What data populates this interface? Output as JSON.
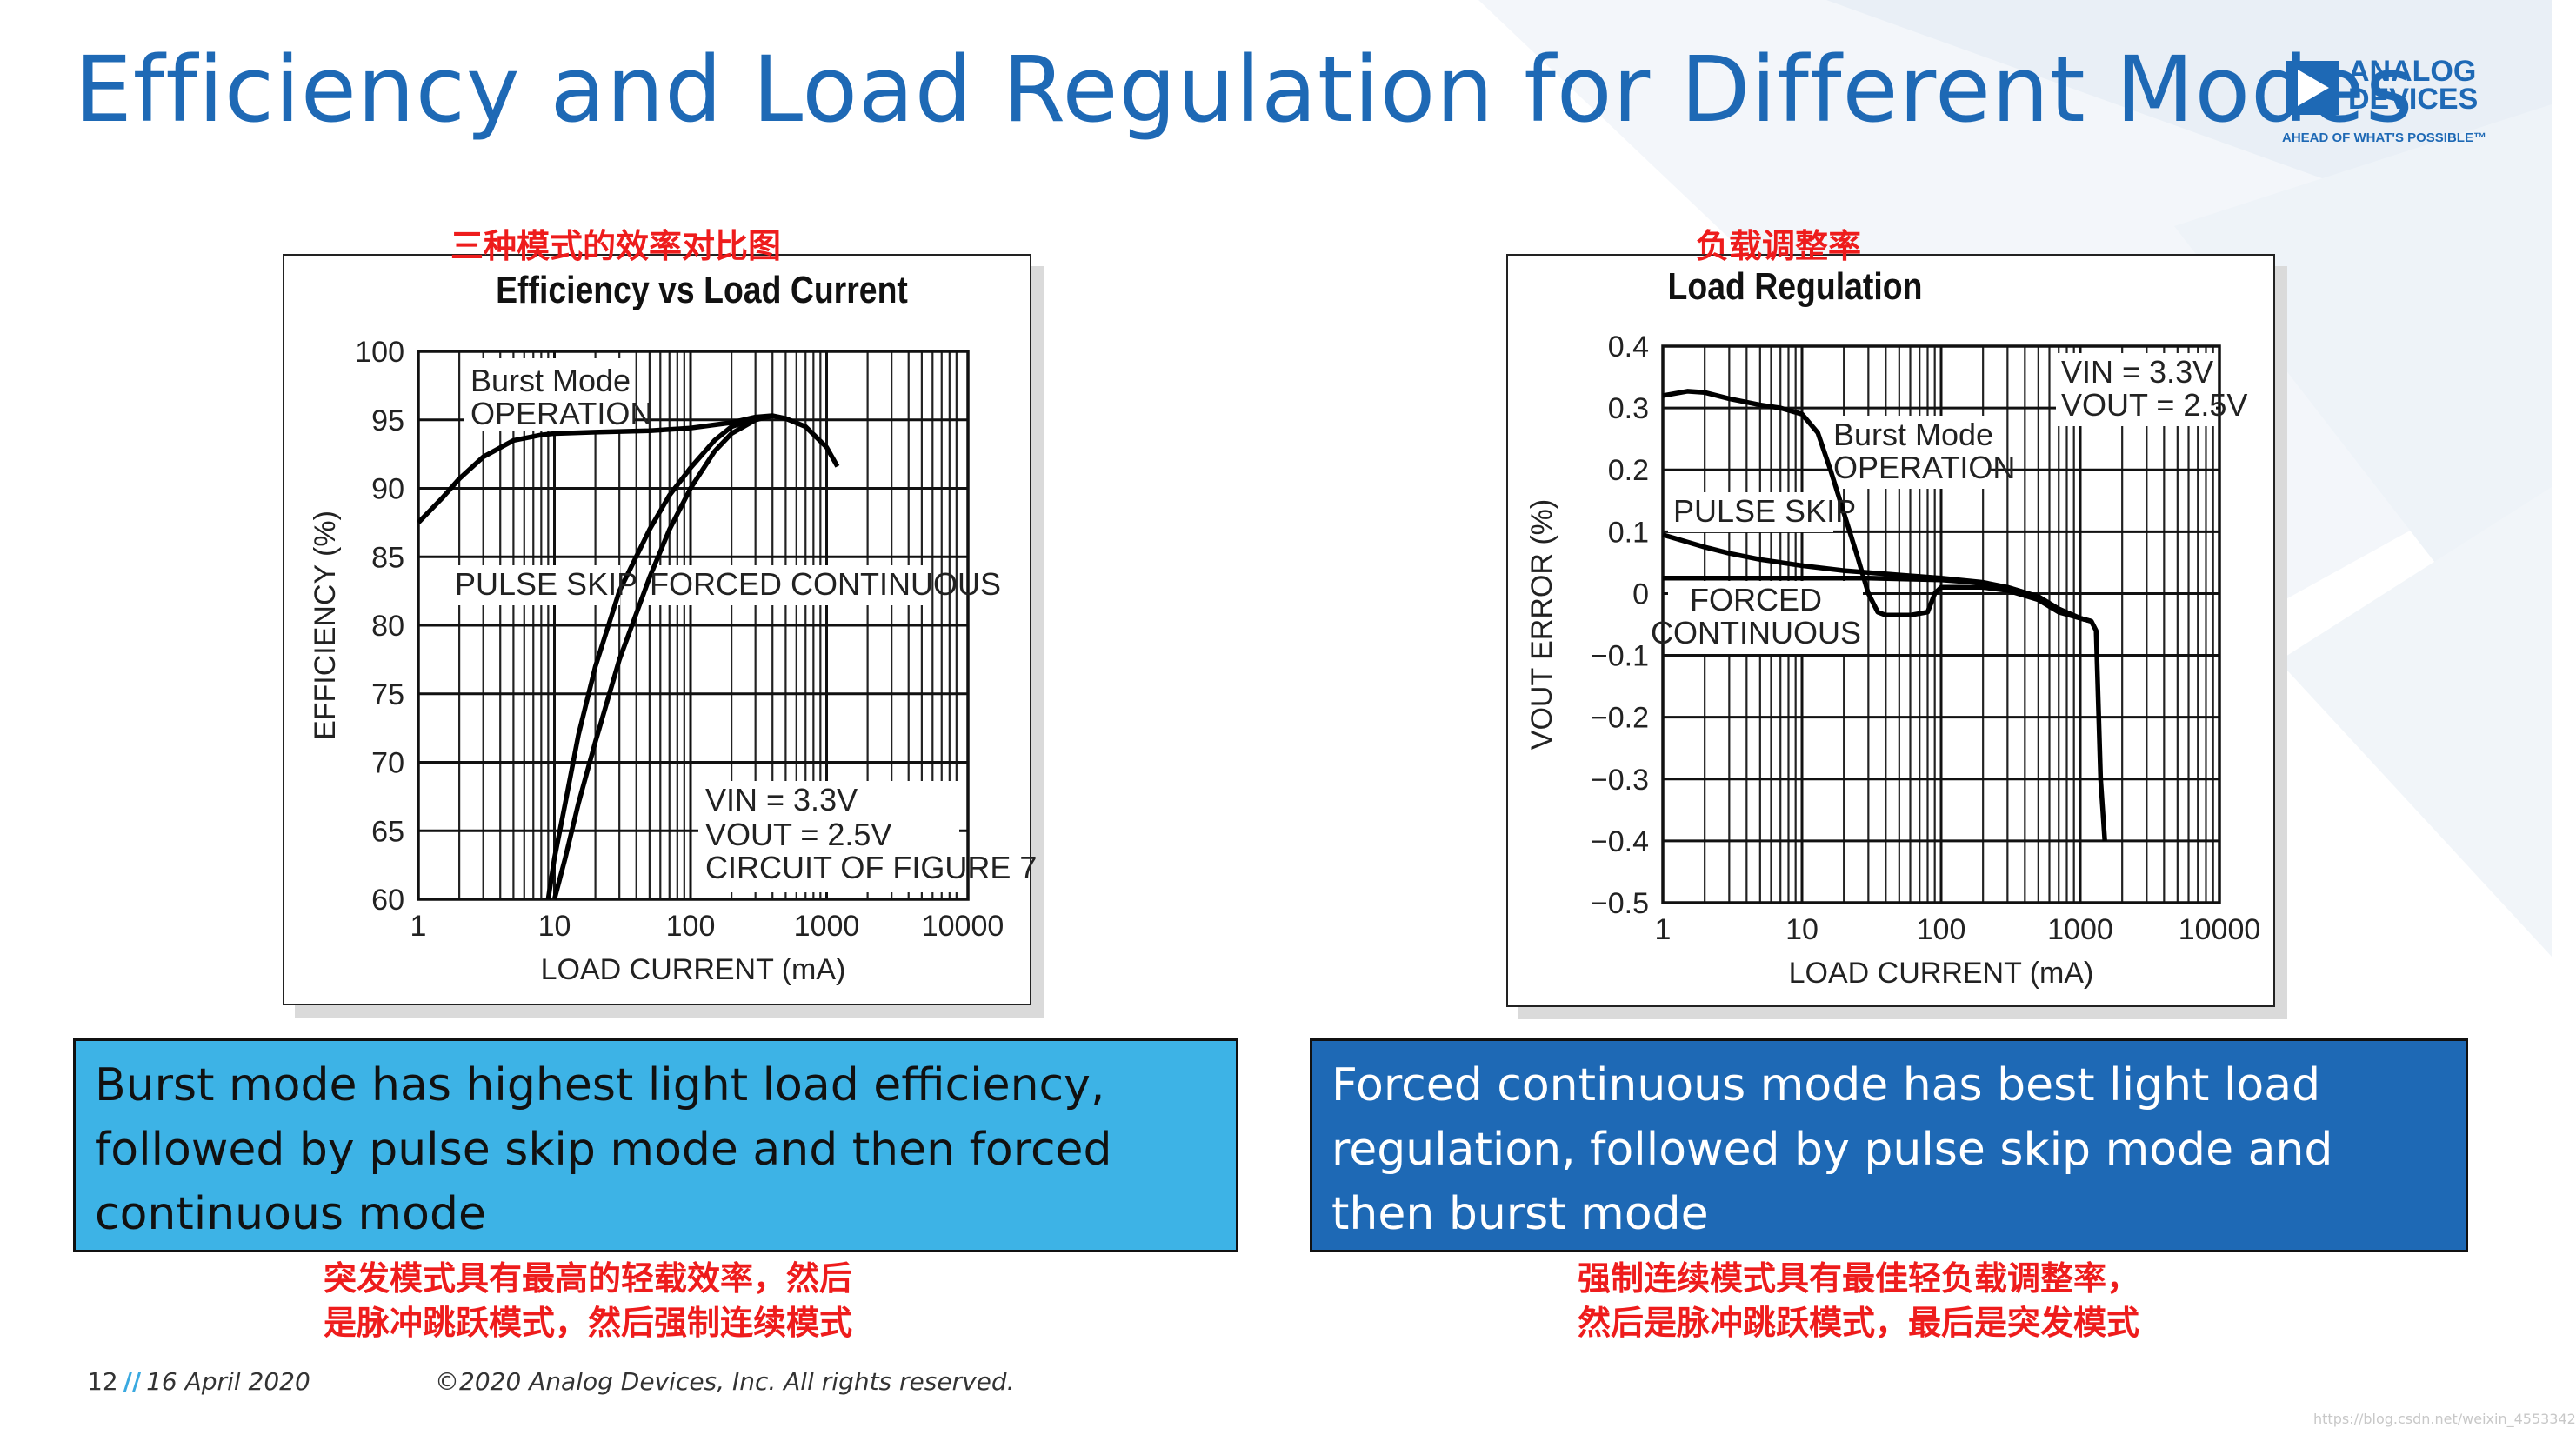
{
  "title": "Efficiency and Load Regulation for Different Modes",
  "logo": {
    "line1": "ANALOG",
    "line2": "DEVICES",
    "tagline": "AHEAD OF WHAT'S POSSIBLE™",
    "color": "#1e69b5"
  },
  "left_panel": {
    "cn_caption": "三种模式的效率对比图",
    "summary": "Burst mode has highest light load efficiency, followed by pulse skip mode and then forced continuous mode",
    "summary_cn_line1": "突发模式具有最高的轻载效率，然后",
    "summary_cn_line2": "是脉冲跳跃模式，然后强制连续模式",
    "box_color": "#3db3e6",
    "text_color": "#111111"
  },
  "right_panel": {
    "cn_caption": "负载调整率",
    "summary": "Forced continuous mode has best light load regulation, followed by pulse skip mode and then burst mode",
    "summary_cn_line1": "强制连续模式具有最佳轻负载调整率，",
    "summary_cn_line2": "然后是脉冲跳跃模式，最后是突发模式",
    "box_color": "#1e69b5",
    "text_color": "#ffffff"
  },
  "footer": {
    "page": "12",
    "date": "16 April 2020",
    "copyright": "©2020 Analog Devices, Inc. All rights reserved.",
    "watermark": "https://blog.csdn.net/weixin_4553342"
  },
  "chart_data": [
    {
      "type": "line",
      "title": "Efficiency vs Load Current",
      "xlabel": "LOAD CURRENT (mA)",
      "ylabel": "EFFICIENCY (%)",
      "xscale": "log",
      "xlim": [
        1,
        10000
      ],
      "ylim": [
        60,
        100
      ],
      "xticks": [
        "1",
        "10",
        "100",
        "1000",
        "10000"
      ],
      "yticks": [
        "60",
        "65",
        "70",
        "75",
        "80",
        "85",
        "90",
        "95",
        "100"
      ],
      "grid": true,
      "series": [
        {
          "name": "Burst Mode OPERATION",
          "x": [
            1,
            1.5,
            2,
            3,
            5,
            8,
            10,
            20,
            50,
            100,
            200,
            300,
            400,
            500,
            700,
            1000,
            1200
          ],
          "y": [
            87.5,
            89.3,
            90.7,
            92.3,
            93.5,
            93.9,
            94,
            94.1,
            94.2,
            94.4,
            94.8,
            95.2,
            95.3,
            95.1,
            94.5,
            93,
            91.6
          ]
        },
        {
          "name": "PULSE SKIP",
          "x": [
            9,
            10,
            12,
            15,
            20,
            30,
            50,
            70,
            100,
            150,
            200,
            300,
            400
          ],
          "y": [
            60,
            63,
            67,
            72,
            77,
            82.5,
            87,
            89.5,
            91.5,
            93.5,
            94.5,
            95.1,
            95.3
          ]
        },
        {
          "name": "FORCED CONTINUOUS",
          "x": [
            10,
            12,
            15,
            20,
            30,
            50,
            70,
            100,
            150,
            200,
            300,
            400
          ],
          "y": [
            60,
            63,
            67,
            71.5,
            77.5,
            83.5,
            87,
            90,
            92.7,
            94,
            95,
            95.3
          ]
        }
      ],
      "annotations": [
        "Burst Mode",
        "OPERATION",
        "PULSE SKIP",
        "FORCED CONTINUOUS",
        "VIN = 3.3V",
        "VOUT = 2.5V",
        "CIRCUIT OF FIGURE 7"
      ]
    },
    {
      "type": "line",
      "title": "Load Regulation",
      "xlabel": "LOAD CURRENT (mA)",
      "ylabel": "VOUT ERROR (%)",
      "xscale": "log",
      "xlim": [
        1,
        10000
      ],
      "ylim": [
        -0.5,
        0.4
      ],
      "xticks": [
        "1",
        "10",
        "100",
        "1000",
        "10000"
      ],
      "yticks": [
        "0.4",
        "0.3",
        "0.2",
        "0.1",
        "0",
        "−0.1",
        "−0.2",
        "−0.3",
        "−0.4",
        "−0.5"
      ],
      "grid": true,
      "series": [
        {
          "name": "Burst Mode OPERATION",
          "x": [
            1,
            1.5,
            2,
            3,
            5,
            7,
            10,
            13,
            16,
            20,
            25,
            30,
            35,
            40,
            50,
            60,
            80,
            90,
            100,
            120,
            150,
            200,
            300,
            500,
            700,
            1000,
            1200,
            1300,
            1400,
            1500
          ],
          "y": [
            0.32,
            0.327,
            0.325,
            0.315,
            0.305,
            0.3,
            0.29,
            0.26,
            0.2,
            0.13,
            0.06,
            0.0,
            -0.03,
            -0.035,
            -0.035,
            -0.035,
            -0.03,
            0.0,
            0.01,
            0.01,
            0.01,
            0.01,
            0.005,
            -0.01,
            -0.03,
            -0.04,
            -0.045,
            -0.06,
            -0.3,
            -0.4
          ]
        },
        {
          "name": "PULSE SKIP",
          "x": [
            1,
            2,
            3,
            5,
            10,
            20,
            50,
            100,
            200,
            300,
            500,
            700,
            1000,
            1200
          ],
          "y": [
            0.095,
            0.075,
            0.065,
            0.055,
            0.045,
            0.037,
            0.03,
            0.025,
            0.018,
            0.01,
            -0.005,
            -0.025,
            -0.04,
            -0.045
          ]
        },
        {
          "name": "FORCED CONTINUOUS",
          "x": [
            1,
            3,
            10,
            30,
            100,
            200,
            300,
            500,
            700,
            1000,
            1200
          ],
          "y": [
            0.025,
            0.025,
            0.025,
            0.025,
            0.022,
            0.017,
            0.01,
            -0.005,
            -0.025,
            -0.04,
            -0.045
          ]
        }
      ],
      "annotations": [
        "VIN = 3.3V",
        "VOUT = 2.5V",
        "Burst Mode",
        "OPERATION",
        "PULSE SKIP",
        "FORCED",
        "CONTINUOUS"
      ]
    }
  ]
}
